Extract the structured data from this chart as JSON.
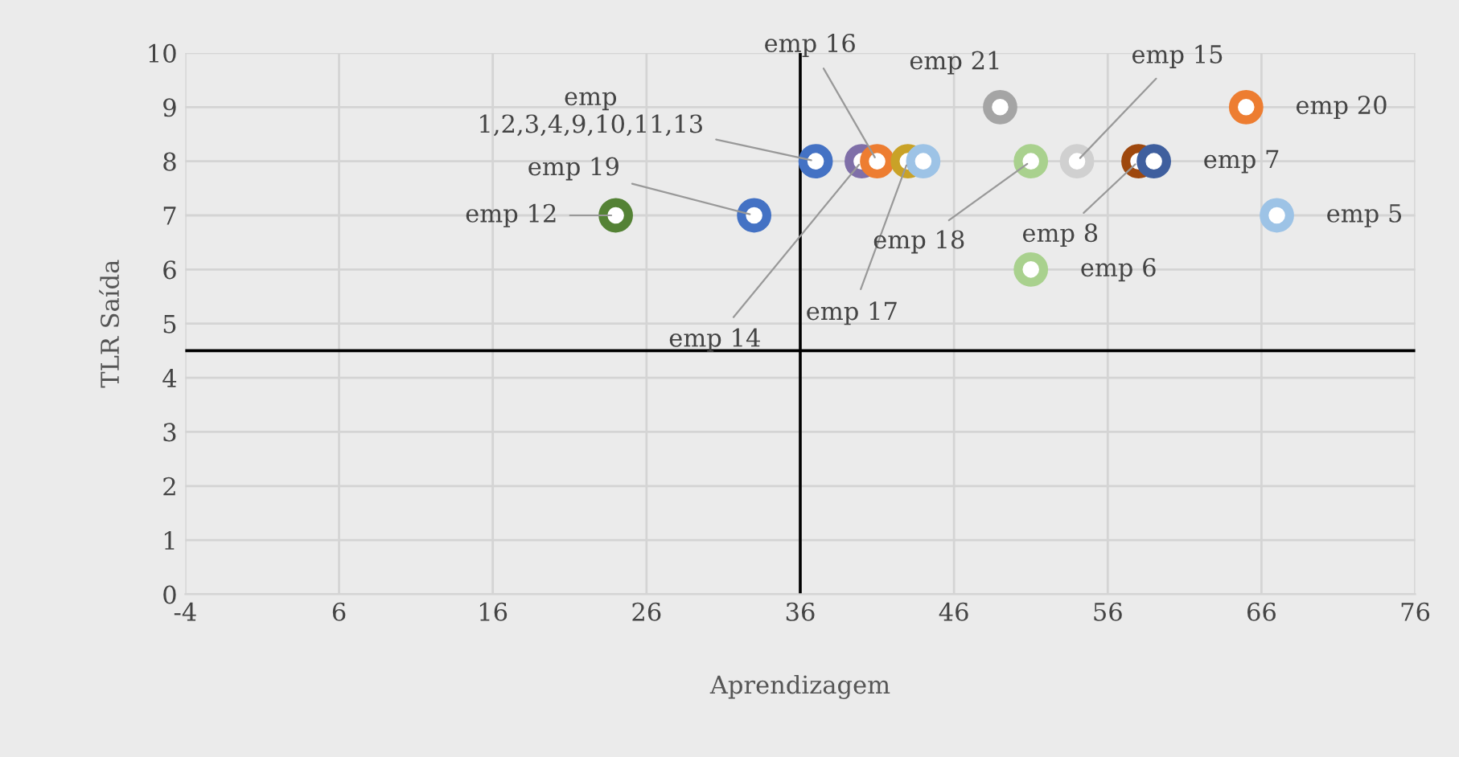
{
  "chart_data": {
    "type": "scatter",
    "xlabel": "Aprendizagem",
    "ylabel": "TLR Saída",
    "xlim": [
      -4,
      76
    ],
    "xticks": [
      -4,
      6,
      16,
      26,
      36,
      46,
      56,
      66,
      76
    ],
    "ylim": [
      0,
      10
    ],
    "yticks": [
      0,
      1,
      2,
      3,
      4,
      5,
      6,
      7,
      8,
      9,
      10
    ],
    "grid": true,
    "legend": false,
    "marker": "circle",
    "series": [
      {
        "color": "#4472c4",
        "x": [
          37
        ],
        "values": [
          8
        ]
      },
      {
        "color": "#7f6fa8",
        "x": [
          40
        ],
        "values": [
          8
        ]
      },
      {
        "color": "#ed7d31",
        "x": [
          41
        ],
        "values": [
          8
        ]
      },
      {
        "color": "#c9a227",
        "x": [
          43
        ],
        "values": [
          8
        ]
      },
      {
        "color": "#9dc3e6",
        "x": [
          44
        ],
        "values": [
          8
        ]
      },
      {
        "color": "#a5a5a5",
        "x": [
          49
        ],
        "values": [
          9
        ]
      },
      {
        "color": "#a9d18e",
        "x": [
          51
        ],
        "values": [
          8
        ]
      },
      {
        "color": "#d0d0d0",
        "x": [
          54
        ],
        "values": [
          8
        ]
      },
      {
        "color": "#9e480e",
        "x": [
          58
        ],
        "values": [
          8
        ]
      },
      {
        "color": "#3f5f9e",
        "x": [
          59
        ],
        "values": [
          8
        ]
      },
      {
        "color": "#ed7d31",
        "x": [
          65
        ],
        "values": [
          9
        ]
      },
      {
        "color": "#9dc3e6",
        "x": [
          67
        ],
        "values": [
          7
        ]
      },
      {
        "color": "#a9d18e",
        "x": [
          51
        ],
        "values": [
          6
        ]
      },
      {
        "color": "#548235",
        "x": [
          24
        ],
        "values": [
          7
        ]
      },
      {
        "color": "#4472c4",
        "x": [
          33
        ],
        "values": [
          7
        ]
      }
    ],
    "ref_lines": [
      {
        "axis": "x",
        "value": 36,
        "color": "#000000"
      },
      {
        "axis": "y",
        "value": 4.5,
        "color": "#000000"
      }
    ],
    "annotations": [
      {
        "text": "emp 1,2,3,4,9,10,11,13",
        "x": 37,
        "y": 8
      },
      {
        "text": "emp 16",
        "x": 41,
        "y": 8
      },
      {
        "text": "emp 14",
        "x": 40,
        "y": 8
      },
      {
        "text": "emp 17",
        "x": 43,
        "y": 8
      },
      {
        "text": "emp 19",
        "x": 33,
        "y": 7
      },
      {
        "text": "emp 12",
        "x": 24,
        "y": 7
      },
      {
        "text": "emp 21",
        "x": 49,
        "y": 9
      },
      {
        "text": "emp 15",
        "x": 54,
        "y": 8
      },
      {
        "text": "emp 18",
        "x": 51,
        "y": 8
      },
      {
        "text": "emp 8",
        "x": 58,
        "y": 8
      },
      {
        "text": "emp 7",
        "x": 59,
        "y": 8
      },
      {
        "text": "emp 20",
        "x": 65,
        "y": 9
      },
      {
        "text": "emp 5",
        "x": 67,
        "y": 7
      },
      {
        "text": "emp 6",
        "x": 51,
        "y": 6
      }
    ]
  }
}
